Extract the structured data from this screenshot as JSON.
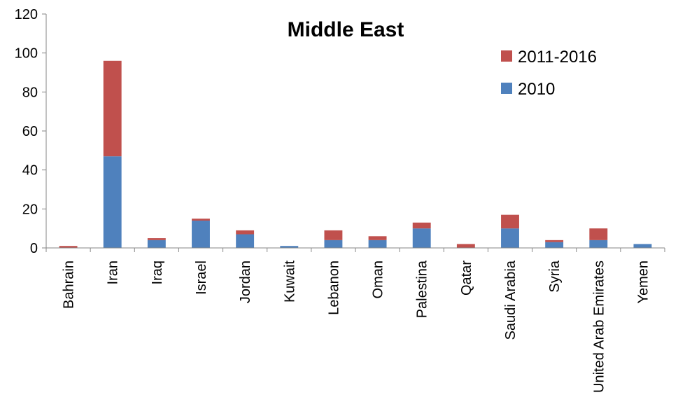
{
  "chart_data": {
    "type": "bar",
    "stacked": true,
    "title": "Middle East",
    "xlabel": "",
    "ylabel": "",
    "ylim": [
      0,
      120
    ],
    "yticks": [
      0,
      20,
      40,
      60,
      80,
      100,
      120
    ],
    "grid": false,
    "legend_position": "top-right",
    "categories": [
      "Bahrain",
      "Iran",
      "Iraq",
      "Israel",
      "Jordan",
      "Kuwait",
      "Lebanon",
      "Oman",
      "Palestina",
      "Qatar",
      "Saudi Arabia",
      "Syria",
      "United Arab Emirates",
      "Yemen"
    ],
    "series": [
      {
        "name": "2010",
        "color": "#4F81BD",
        "values": [
          0,
          47,
          4,
          14,
          7,
          1,
          4,
          4,
          10,
          0,
          10,
          3,
          4,
          2
        ]
      },
      {
        "name": "2011-2016",
        "color": "#C0504D",
        "values": [
          1,
          49,
          1,
          1,
          2,
          0,
          5,
          2,
          3,
          2,
          7,
          1,
          6,
          0
        ]
      }
    ]
  }
}
